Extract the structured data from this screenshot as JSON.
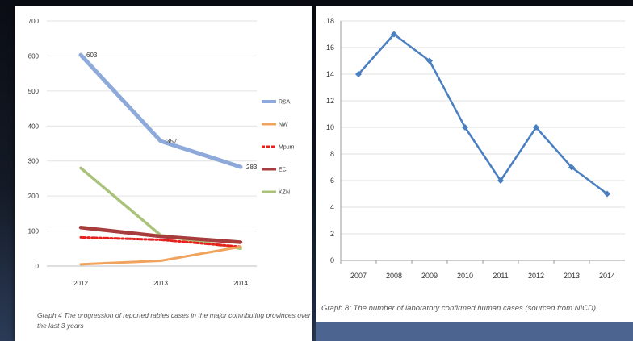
{
  "chart_data": [
    {
      "type": "line",
      "title": "",
      "xlabel": "",
      "ylabel": "",
      "categories": [
        "2012",
        "2013",
        "2014"
      ],
      "ylim": [
        0,
        700
      ],
      "yticks": [
        "0",
        "100",
        "200",
        "300",
        "400",
        "500",
        "600",
        "700"
      ],
      "grid": true,
      "legend_position": "right",
      "series": [
        {
          "name": "RSA",
          "values": [
            603,
            357,
            283
          ],
          "color": "#8eaadb",
          "labels": [
            "603",
            "357",
            "283"
          ]
        },
        {
          "name": "NW",
          "values": [
            5,
            15,
            55
          ],
          "color": "#f0a35c"
        },
        {
          "name": "Mpum",
          "values": [
            82,
            75,
            55
          ],
          "color": "#e8201c",
          "dashed": true
        },
        {
          "name": "EC",
          "values": [
            110,
            85,
            68
          ],
          "color": "#a83c3c"
        },
        {
          "name": "KZN",
          "values": [
            280,
            88,
            50
          ],
          "color": "#a9c37a"
        }
      ],
      "caption": "Graph 4 The progression of reported rabies cases in the major contributing provinces over the last 3 years"
    },
    {
      "type": "line",
      "title": "",
      "xlabel": "",
      "ylabel": "",
      "categories": [
        "2007",
        "2008",
        "2009",
        "2010",
        "2011",
        "2012",
        "2013",
        "2014"
      ],
      "ylim": [
        0,
        18
      ],
      "yticks": [
        "0",
        "2",
        "4",
        "6",
        "8",
        "10",
        "12",
        "14",
        "16",
        "18"
      ],
      "grid": true,
      "series": [
        {
          "values": [
            14,
            17,
            15,
            10,
            6,
            10,
            7,
            5
          ],
          "color": "#4a7fc1"
        }
      ],
      "caption": "Graph 8: The number of laboratory confirmed human cases (sourced from NICD)."
    }
  ]
}
